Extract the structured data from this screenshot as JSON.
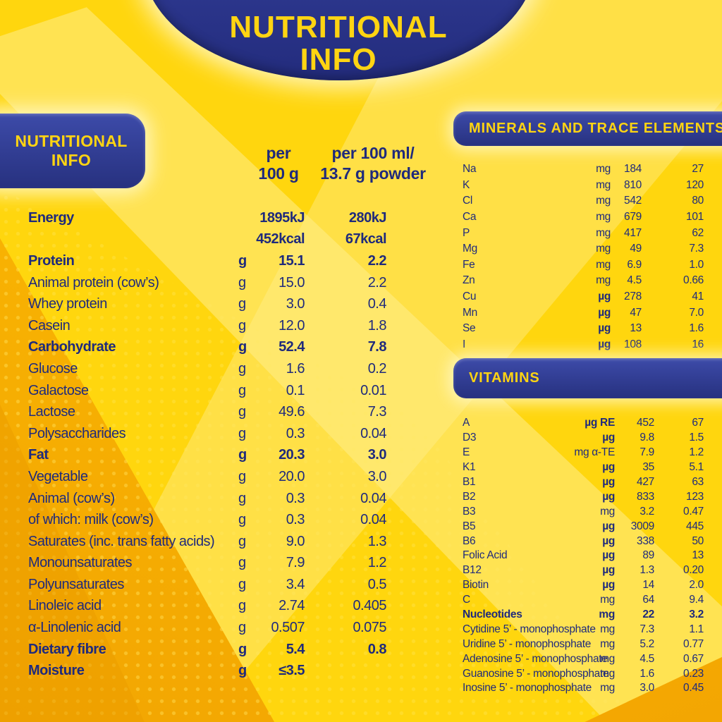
{
  "title": {
    "line1": "NUTRITIONAL",
    "line2": "INFO"
  },
  "colors": {
    "background_yellow": "#FFD60E",
    "accent_gold": "#F2A502",
    "banner_blue": "#2A3489",
    "text_navy": "#1F2A7C",
    "text_yellow": "#FFD412"
  },
  "left_panel": {
    "badge_line1": "NUTRITIONAL",
    "badge_line2": "INFO",
    "col1": {
      "line1": "per",
      "line2": "100 g"
    },
    "col2": {
      "line1": "per 100 ml/",
      "line2": "13.7 g powder"
    },
    "rows": [
      {
        "label": "Energy",
        "unit": "",
        "v1": "1895kJ",
        "v2": "280kJ",
        "bold": true
      },
      {
        "label": "",
        "unit": "",
        "v1": "452kcal",
        "v2": "67kcal",
        "bold": true
      },
      {
        "label": "Protein",
        "unit": "g",
        "v1": "15.1",
        "v2": "2.2",
        "bold": true
      },
      {
        "label": "Animal protein (cow’s)",
        "unit": "g",
        "v1": "15.0",
        "v2": "2.2"
      },
      {
        "label": "Whey protein",
        "unit": "g",
        "v1": "3.0",
        "v2": "0.4"
      },
      {
        "label": "Casein",
        "unit": "g",
        "v1": "12.0",
        "v2": "1.8"
      },
      {
        "label": "Carbohydrate",
        "unit": "g",
        "v1": "52.4",
        "v2": "7.8",
        "bold": true
      },
      {
        "label": "Glucose",
        "unit": "g",
        "v1": "1.6",
        "v2": "0.2"
      },
      {
        "label": "Galactose",
        "unit": "g",
        "v1": "0.1",
        "v2": "0.01"
      },
      {
        "label": "Lactose",
        "unit": "g",
        "v1": "49.6",
        "v2": "7.3"
      },
      {
        "label": "Polysaccharides",
        "unit": "g",
        "v1": "0.3",
        "v2": "0.04"
      },
      {
        "label": "Fat",
        "unit": "g",
        "v1": "20.3",
        "v2": "3.0",
        "bold": true
      },
      {
        "label": "Vegetable",
        "unit": "g",
        "v1": "20.0",
        "v2": "3.0"
      },
      {
        "label": "Animal (cow’s)",
        "unit": "g",
        "v1": "0.3",
        "v2": "0.04"
      },
      {
        "label": "of which: milk (cow’s)",
        "unit": "g",
        "v1": "0.3",
        "v2": "0.04"
      },
      {
        "label": "Saturates (inc. trans fatty acids)",
        "unit": "g",
        "v1": "9.0",
        "v2": "1.3"
      },
      {
        "label": "Monounsaturates",
        "unit": "g",
        "v1": "7.9",
        "v2": "1.2"
      },
      {
        "label": "Polyunsaturates",
        "unit": "g",
        "v1": "3.4",
        "v2": "0.5"
      },
      {
        "label": "Linoleic acid",
        "unit": "g",
        "v1": "2.74",
        "v2": "0.405"
      },
      {
        "label": "α-Linolenic acid",
        "unit": "g",
        "v1": "0.507",
        "v2": "0.075"
      },
      {
        "label": "Dietary fibre",
        "unit": "g",
        "v1": "5.4",
        "v2": "0.8",
        "bold": true
      },
      {
        "label": "Moisture",
        "unit": "g",
        "v1": "≤3.5",
        "v2": "",
        "bold": true
      }
    ]
  },
  "minerals": {
    "title": "MINERALS AND TRACE ELEMENTS",
    "rows": [
      {
        "label": "Na",
        "unit": "mg",
        "v1": "184",
        "v2": "27"
      },
      {
        "label": "K",
        "unit": "mg",
        "v1": "810",
        "v2": "120"
      },
      {
        "label": "Cl",
        "unit": "mg",
        "v1": "542",
        "v2": "80"
      },
      {
        "label": "Ca",
        "unit": "mg",
        "v1": "679",
        "v2": "101"
      },
      {
        "label": "P",
        "unit": "mg",
        "v1": "417",
        "v2": "62"
      },
      {
        "label": "Mg",
        "unit": "mg",
        "v1": "49",
        "v2": "7.3"
      },
      {
        "label": "Fe",
        "unit": "mg",
        "v1": "6.9",
        "v2": "1.0"
      },
      {
        "label": "Zn",
        "unit": "mg",
        "v1": "4.5",
        "v2": "0.66"
      },
      {
        "label": "Cu",
        "unit": "µg",
        "v1": "278",
        "v2": "41",
        "ub": true
      },
      {
        "label": "Mn",
        "unit": "µg",
        "v1": "47",
        "v2": "7.0",
        "ub": true
      },
      {
        "label": "Se",
        "unit": "µg",
        "v1": "13",
        "v2": "1.6",
        "ub": true
      },
      {
        "label": "I",
        "unit": "µg",
        "v1": "108",
        "v2": "16",
        "ub": true
      }
    ]
  },
  "vitamins": {
    "title": "VITAMINS",
    "rows": [
      {
        "label": "A",
        "unit": "µg RE",
        "v1": "452",
        "v2": "67",
        "ub": true
      },
      {
        "label": "D3",
        "unit": "µg",
        "v1": "9.8",
        "v2": "1.5",
        "ub": true
      },
      {
        "label": "E",
        "unit": "mg α-TE",
        "v1": "7.9",
        "v2": "1.2"
      },
      {
        "label": "K1",
        "unit": "µg",
        "v1": "35",
        "v2": "5.1",
        "ub": true
      },
      {
        "label": "B1",
        "unit": "µg",
        "v1": "427",
        "v2": "63",
        "ub": true
      },
      {
        "label": "B2",
        "unit": "µg",
        "v1": "833",
        "v2": "123",
        "ub": true
      },
      {
        "label": "B3",
        "unit": "mg",
        "v1": "3.2",
        "v2": "0.47"
      },
      {
        "label": "B5",
        "unit": "µg",
        "v1": "3009",
        "v2": "445",
        "ub": true
      },
      {
        "label": "B6",
        "unit": "µg",
        "v1": "338",
        "v2": "50",
        "ub": true
      },
      {
        "label": "Folic Acid",
        "unit": "µg",
        "v1": "89",
        "v2": "13",
        "ub": true
      },
      {
        "label": "B12",
        "unit": "µg",
        "v1": "1.3",
        "v2": "0.20",
        "ub": true
      },
      {
        "label": "Biotin",
        "unit": "µg",
        "v1": "14",
        "v2": "2.0",
        "ub": true
      },
      {
        "label": "C",
        "unit": "mg",
        "v1": "64",
        "v2": "9.4"
      },
      {
        "label": "Nucleotides",
        "unit": "mg",
        "v1": "22",
        "v2": "3.2",
        "bold": true
      },
      {
        "label": "Cytidine 5’ - monophosphate",
        "unit": "mg",
        "v1": "7.3",
        "v2": "1.1"
      },
      {
        "label": "Uridine 5’ - monophosphate",
        "unit": "mg",
        "v1": "5.2",
        "v2": "0.77"
      },
      {
        "label": "Adenosine 5’ - monophosphate",
        "unit": "mg",
        "v1": "4.5",
        "v2": "0.67"
      },
      {
        "label": "Guanosine 5’ - monophosphate",
        "unit": "mg",
        "v1": "1.6",
        "v2": "0.23"
      },
      {
        "label": "Inosine 5’ - monophosphate",
        "unit": "mg",
        "v1": "3.0",
        "v2": "0.45"
      }
    ]
  }
}
